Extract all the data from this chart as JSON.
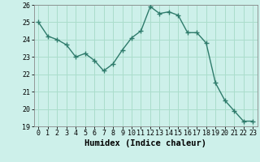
{
  "x": [
    0,
    1,
    2,
    3,
    4,
    5,
    6,
    7,
    8,
    9,
    10,
    11,
    12,
    13,
    14,
    15,
    16,
    17,
    18,
    19,
    20,
    21,
    22,
    23
  ],
  "y": [
    25.0,
    24.2,
    24.0,
    23.7,
    23.0,
    23.2,
    22.8,
    22.2,
    22.6,
    23.4,
    24.1,
    24.5,
    25.9,
    25.5,
    25.6,
    25.4,
    24.4,
    24.4,
    23.8,
    21.5,
    20.5,
    19.9,
    19.3,
    19.3
  ],
  "line_color": "#2e7b6b",
  "marker": "+",
  "marker_size": 4,
  "marker_linewidth": 1.0,
  "background_color": "#cdf0ea",
  "grid_color": "#aaddcc",
  "xlabel": "Humidex (Indice chaleur)",
  "xlim": [
    -0.5,
    23.5
  ],
  "ylim": [
    19,
    26
  ],
  "yticks": [
    19,
    20,
    21,
    22,
    23,
    24,
    25,
    26
  ],
  "xticks": [
    0,
    1,
    2,
    3,
    4,
    5,
    6,
    7,
    8,
    9,
    10,
    11,
    12,
    13,
    14,
    15,
    16,
    17,
    18,
    19,
    20,
    21,
    22,
    23
  ],
  "tick_fontsize": 6,
  "xlabel_fontsize": 7.5,
  "linewidth": 1.0
}
